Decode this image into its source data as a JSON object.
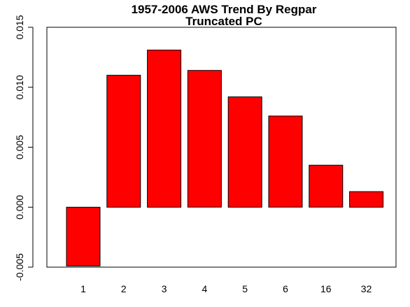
{
  "chart_data": {
    "type": "bar",
    "title": "1957-2006 AWS Trend By Regpar",
    "subtitle": "Truncated PC",
    "xlabel": "",
    "ylabel": "",
    "categories": [
      "1",
      "2",
      "3",
      "4",
      "5",
      "6",
      "16",
      "32"
    ],
    "values": [
      -0.0049,
      0.011,
      0.0131,
      0.0114,
      0.0092,
      0.0076,
      0.0035,
      0.0013
    ],
    "ylim": [
      -0.005,
      0.015
    ],
    "y_ticks": [
      "-0.005",
      "0.000",
      "0.005",
      "0.010",
      "0.015"
    ],
    "grid": false,
    "legend": "none",
    "bar_color": "#ff0000",
    "bar_border_color": "#000000"
  }
}
